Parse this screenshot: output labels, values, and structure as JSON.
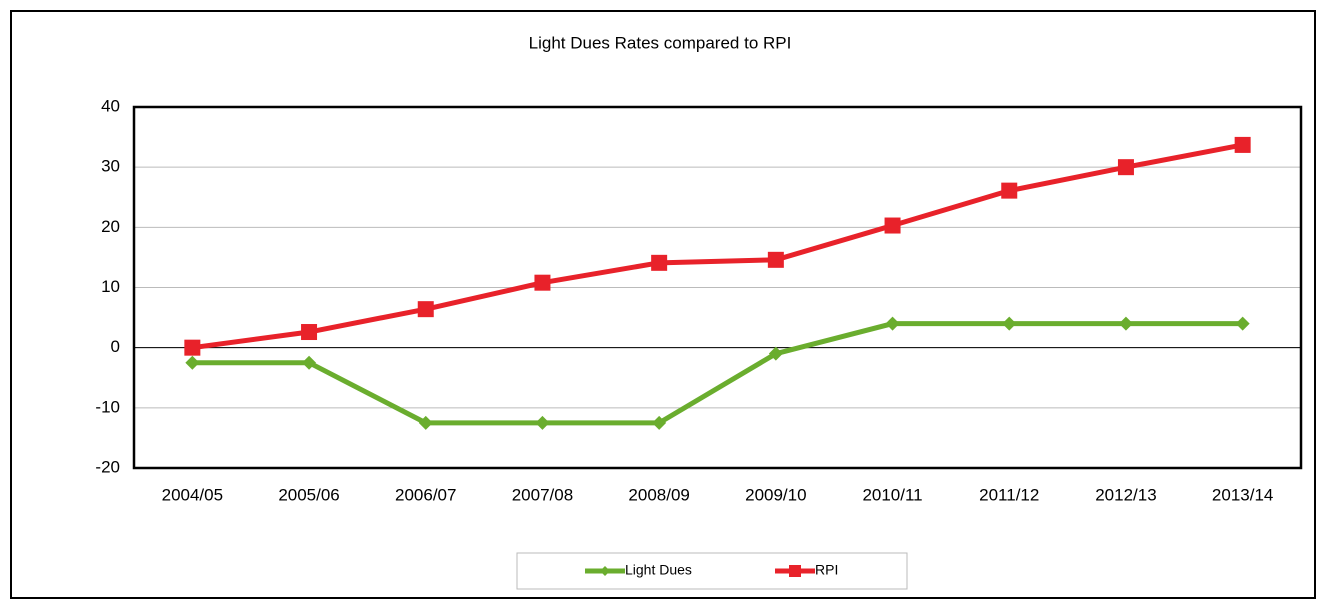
{
  "chart_data": {
    "type": "line",
    "title": "Light Dues Rates compared to RPI",
    "categories": [
      "2004/05",
      "2005/06",
      "2006/07",
      "2007/08",
      "2008/09",
      "2009/10",
      "2010/11",
      "2011/12",
      "2012/13",
      "2013/14"
    ],
    "series": [
      {
        "name": "Light Dues",
        "color": "#6aad2e",
        "marker": "diamond",
        "values": [
          -2.5,
          -2.5,
          -12.5,
          -12.5,
          -12.5,
          -1,
          4,
          4,
          4,
          4
        ]
      },
      {
        "name": "RPI",
        "color": "#e8222a",
        "marker": "square",
        "values": [
          0,
          2.6,
          6.4,
          10.8,
          14.1,
          14.6,
          20.3,
          26.1,
          30,
          33.7
        ]
      }
    ],
    "ylim": [
      -20,
      40
    ],
    "yticks": [
      -20,
      -10,
      0,
      10,
      20,
      30,
      40
    ],
    "grid": true,
    "legend": "bottom"
  }
}
